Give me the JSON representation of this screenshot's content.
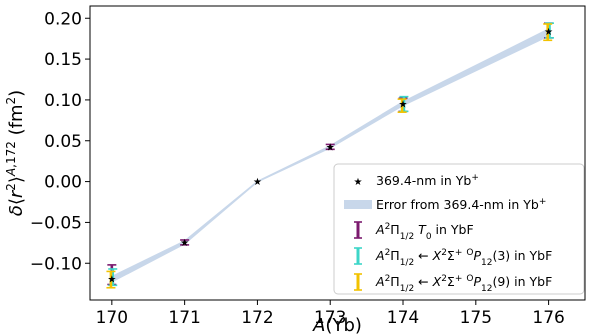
{
  "chart_data": {
    "type": "scatter",
    "xlabel": "A(Yb)",
    "ylabel": "δ⟨r²⟩^{A,172} (fm²)",
    "xlim": [
      169.7,
      176.5
    ],
    "ylim": [
      -0.145,
      0.215
    ],
    "xticks": [
      170,
      171,
      172,
      173,
      174,
      175,
      176
    ],
    "yticks": [
      -0.1,
      -0.05,
      0.0,
      0.05,
      0.1,
      0.15,
      0.2
    ],
    "ytick_labels": [
      "−0.10",
      "−0.05",
      "0.00",
      "0.05",
      "0.10",
      "0.15",
      "0.20"
    ],
    "grid": false,
    "legend_position": "bottom-right",
    "band": {
      "name": "Error from 369.4-nm in Yb+",
      "color": "#c8d7ea",
      "x": [
        170,
        171,
        172,
        173,
        174,
        176
      ],
      "center": [
        -0.1195,
        -0.0745,
        0.0,
        0.0425,
        0.0955,
        0.1825
      ],
      "half_width": [
        0.0035,
        0.002,
        0.0005,
        0.0015,
        0.0025,
        0.0045
      ]
    },
    "series": [
      {
        "name": "369.4-nm in Yb+",
        "marker": "star",
        "color": "#000000",
        "x": [
          170,
          171,
          172,
          173,
          174,
          176
        ],
        "y": [
          -0.119,
          -0.0745,
          0.0,
          0.0425,
          0.095,
          0.184
        ]
      },
      {
        "name": "A2Π1/2 T0 in YbF",
        "marker": "errorbar",
        "color": "#7b1a6e",
        "x": [
          170,
          171,
          173,
          174,
          176
        ],
        "y": [
          -0.114,
          -0.0745,
          0.0425,
          0.094,
          0.185
        ],
        "err": [
          0.012,
          0.003,
          0.003,
          0.008,
          0.009
        ]
      },
      {
        "name": "A2Π1/2 ← X2Σ+ OP12(3) in YbF",
        "marker": "errorbar",
        "color": "#3dd6c8",
        "x": [
          170,
          174,
          176
        ],
        "y": [
          -0.117,
          0.095,
          0.185
        ],
        "err": [
          0.01,
          0.009,
          0.009
        ]
      },
      {
        "name": "A2Π1/2 ← X2Σ+ OP12(9) in YbF",
        "marker": "errorbar",
        "color": "#f2c200",
        "x": [
          170,
          174,
          176
        ],
        "y": [
          -0.12,
          0.093,
          0.183
        ],
        "err": [
          0.01,
          0.008,
          0.01
        ]
      }
    ]
  }
}
